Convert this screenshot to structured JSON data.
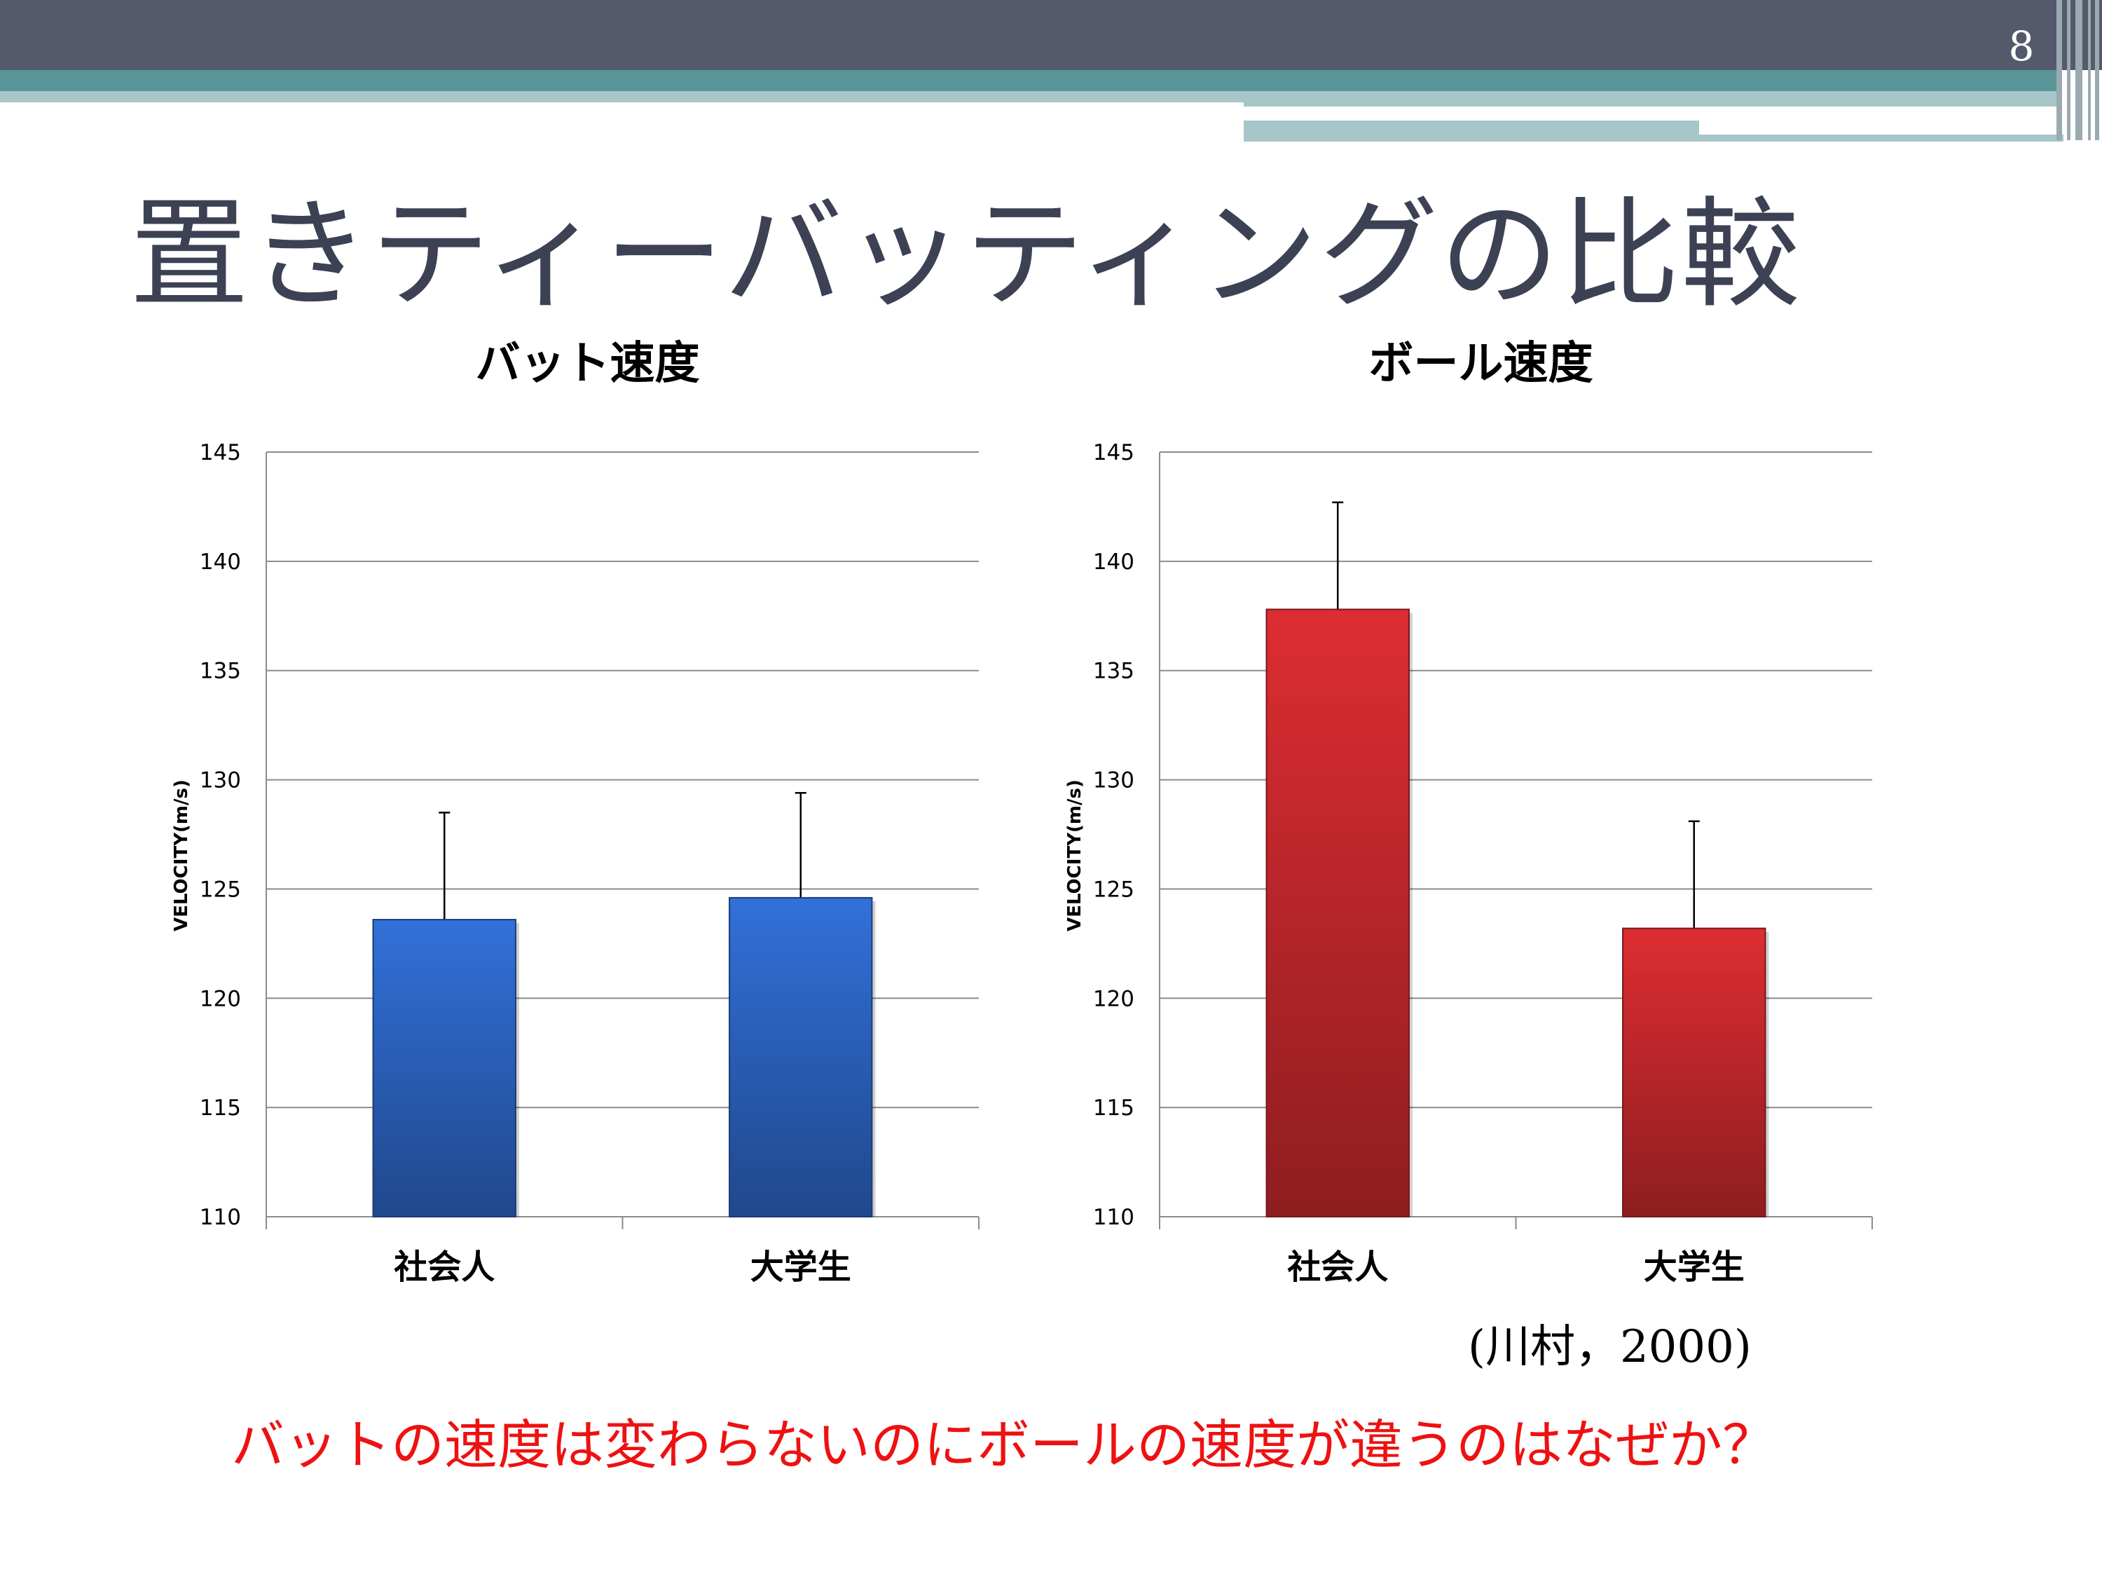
{
  "page_number": "8",
  "title": "置きティーバッティングの比較",
  "citation": "(川村，2000)",
  "question": "バットの速度は変わらないのにボールの速度が違うのはなぜか？",
  "colors": {
    "header_dark": "#545a6c",
    "header_teal": "#5a9599",
    "header_light": "#a7c6c9",
    "title_text": "#3c4154",
    "question_text": "#ee1111",
    "bat_bar": "#2d64c2",
    "ball_bar": "#c5282d"
  },
  "chart_data": [
    {
      "type": "bar",
      "title": "バット速度",
      "ylabel": "VELOCITY(m/s)",
      "xlabel": "",
      "categories": [
        "社会人",
        "大学生"
      ],
      "values": [
        123.6,
        124.6
      ],
      "error_upper": [
        4.9,
        4.8
      ],
      "ylim": [
        110,
        145
      ],
      "yticks": [
        110,
        115,
        120,
        125,
        130,
        135,
        140,
        145
      ],
      "grid": true,
      "bar_color": "#2d64c2"
    },
    {
      "type": "bar",
      "title": "ボール速度",
      "ylabel": "VELOCITY(m/s)",
      "xlabel": "",
      "categories": [
        "社会人",
        "大学生"
      ],
      "values": [
        137.8,
        123.2
      ],
      "error_upper": [
        4.9,
        4.9
      ],
      "ylim": [
        110,
        145
      ],
      "yticks": [
        110,
        115,
        120,
        125,
        130,
        135,
        140,
        145
      ],
      "grid": true,
      "bar_color": "#c5282d"
    }
  ]
}
